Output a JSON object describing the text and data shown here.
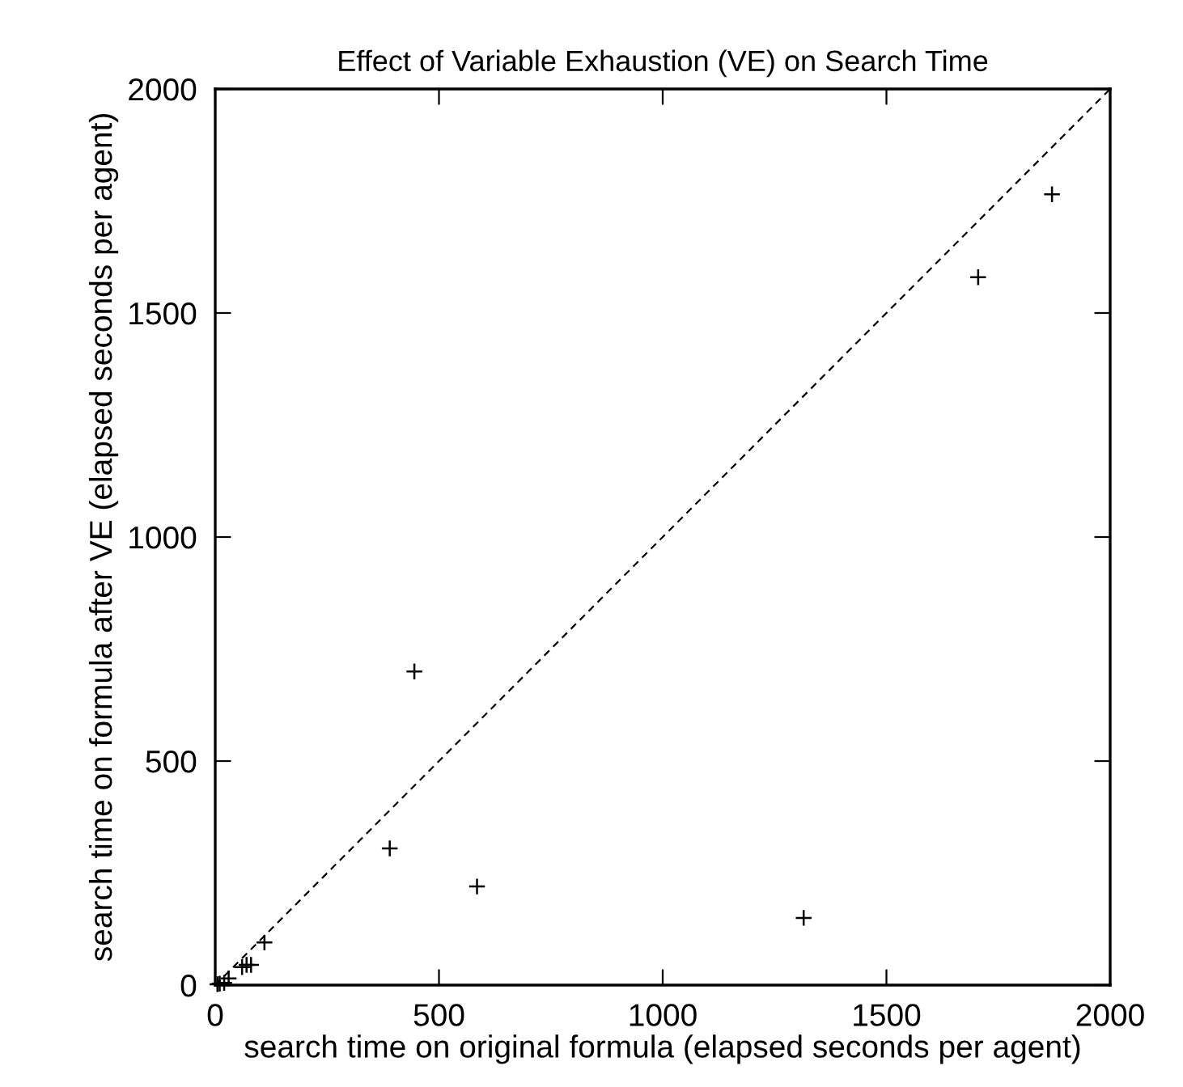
{
  "chart_data": {
    "type": "scatter",
    "title": "Effect of Variable Exhaustion (VE) on Search Time",
    "xlabel": "search time on original formula (elapsed seconds per agent)",
    "ylabel": "search time on formula after VE (elapsed seconds per agent)",
    "xlim": [
      0,
      2000
    ],
    "ylim": [
      0,
      2000
    ],
    "xticks": [
      0,
      500,
      1000,
      1500,
      2000
    ],
    "yticks": [
      0,
      500,
      1000,
      1500,
      2000
    ],
    "grid": false,
    "legend": false,
    "series": [
      {
        "color": "#000000",
        "marker": "cross",
        "x": [
          5,
          10,
          20,
          30,
          60,
          70,
          80,
          110,
          390,
          445,
          585,
          1315,
          1705,
          1870
        ],
        "values": [
          2,
          3,
          5,
          15,
          40,
          45,
          45,
          95,
          305,
          700,
          220,
          150,
          1580,
          1765
        ]
      },
      {
        "type": "line",
        "color": "#000000",
        "marker": "none",
        "line_style": "dashed",
        "x": [
          0,
          2000
        ],
        "values": [
          0,
          2000
        ]
      }
    ]
  }
}
